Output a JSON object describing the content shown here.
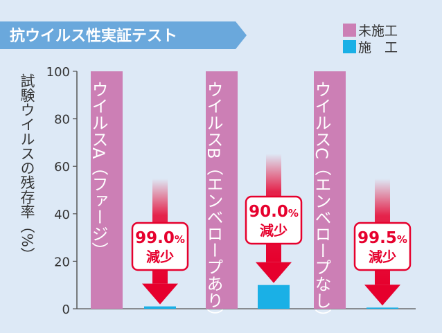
{
  "title": "抗ウイルス性実証テスト",
  "ylabel": "試験ウイルスの残存率（%）",
  "chart_data": {
    "type": "bar",
    "categories": [
      "ウイルスA（ファージ）",
      "ウイルスB（エンベロープあり）",
      "ウイルスC（エンベロープなし）"
    ],
    "series": [
      {
        "name": "未施工",
        "color": "#cc7fb5",
        "values": [
          100,
          100,
          100
        ]
      },
      {
        "name": "施　工",
        "color": "#1ab0e6",
        "values": [
          1.0,
          10.0,
          0.5
        ]
      }
    ],
    "yticks": [
      0,
      20,
      40,
      60,
      80,
      100
    ],
    "ylim": [
      0,
      100
    ],
    "legend": "top-right",
    "annotations": [
      {
        "value": "99.0",
        "unit": "%",
        "text": "減少"
      },
      {
        "value": "90.0",
        "unit": "%",
        "text": "減少"
      },
      {
        "value": "99.5",
        "unit": "%",
        "text": "減少"
      }
    ]
  },
  "colors": {
    "background": "#dde9f6",
    "title_banner": "#6aa8dc",
    "arrow": "#e6002d",
    "text": "#333333"
  }
}
